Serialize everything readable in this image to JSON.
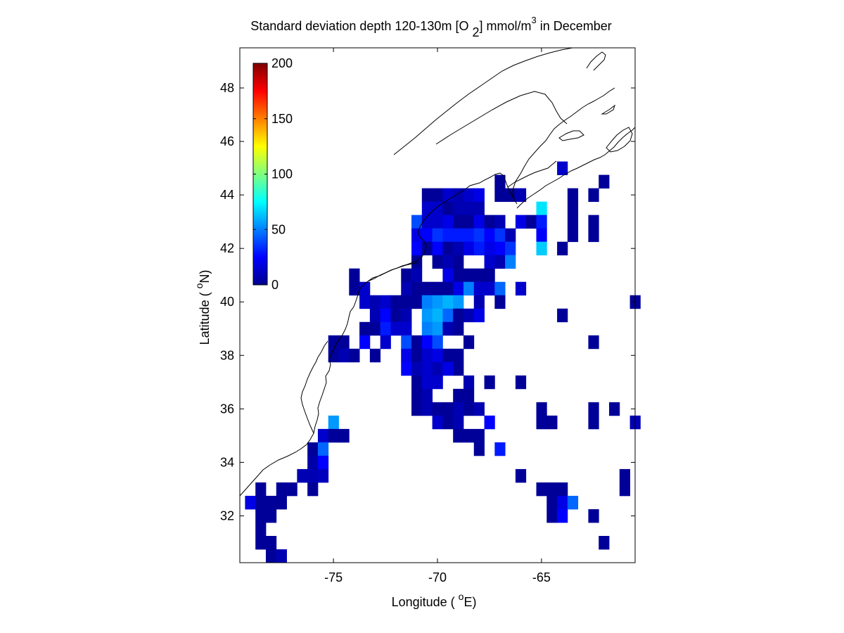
{
  "chart_data": {
    "type": "heatmap",
    "title": "Standard deviation depth 120-130m [O 2] mmol/m3 in December",
    "title_parts": {
      "pre": "Standard deviation depth 120-130m [O ",
      "sub": "2",
      "mid": "] mmol/m",
      "sup": "3",
      "post": " in December"
    },
    "xlabel": "Longitude ( oE)",
    "xlabel_parts": {
      "pre": "Longitude ( ",
      "sup": "o",
      "post": "E)"
    },
    "ylabel": "Latitude ( oN)",
    "ylabel_parts": {
      "pre": "Latitude ( ",
      "sup": "o",
      "post": "N)"
    },
    "xlim": [
      -79.5,
      -60.5
    ],
    "ylim": [
      30.25,
      49.5
    ],
    "x_ticks": [
      -75,
      -70,
      -65
    ],
    "x_tick_labels": [
      "-75",
      "-70",
      "-65"
    ],
    "y_ticks": [
      32,
      34,
      36,
      38,
      40,
      42,
      44,
      46,
      48
    ],
    "y_tick_labels": [
      "32",
      "34",
      "36",
      "38",
      "40",
      "42",
      "44",
      "46",
      "48"
    ],
    "colormap": "jet",
    "clim": [
      0,
      200
    ],
    "colorbar_ticks": [
      0,
      50,
      100,
      150,
      200
    ],
    "colorbar_tick_labels": [
      "0",
      "50",
      "100",
      "150",
      "200"
    ],
    "colorbar_location": "inside top-left",
    "grid": false,
    "cell_size_deg": 0.5,
    "cells": [
      [
        -79,
        32.5,
        20
      ],
      [
        -78.5,
        32.5,
        5
      ],
      [
        -78.5,
        32,
        5
      ],
      [
        -78.5,
        31.5,
        5
      ],
      [
        -78.5,
        31,
        5
      ],
      [
        -78.5,
        33,
        5
      ],
      [
        -78,
        32.5,
        5
      ],
      [
        -78,
        32,
        5
      ],
      [
        -78,
        31,
        5
      ],
      [
        -78,
        30.5,
        5
      ],
      [
        -77.5,
        33,
        5
      ],
      [
        -77.5,
        32.5,
        5
      ],
      [
        -77.5,
        30.5,
        10
      ],
      [
        -77,
        33,
        5
      ],
      [
        -76.5,
        33.5,
        10
      ],
      [
        -76,
        34.5,
        5
      ],
      [
        -76,
        34,
        8
      ],
      [
        -76,
        33.5,
        10
      ],
      [
        -76,
        33,
        5
      ],
      [
        -75.5,
        35,
        15
      ],
      [
        -75.5,
        34.5,
        45
      ],
      [
        -75.5,
        34,
        25
      ],
      [
        -75.5,
        33.5,
        12
      ],
      [
        -75,
        35.5,
        55
      ],
      [
        -75,
        35,
        5
      ],
      [
        -74.5,
        35,
        5
      ],
      [
        -75,
        38.5,
        5
      ],
      [
        -75,
        38,
        5
      ],
      [
        -74.5,
        38.5,
        5
      ],
      [
        -74.5,
        38,
        10
      ],
      [
        -74,
        38,
        5
      ],
      [
        -74,
        41,
        5
      ],
      [
        -74,
        40.5,
        5
      ],
      [
        -73.5,
        40.5,
        15
      ],
      [
        -73.5,
        40,
        15
      ],
      [
        -73.5,
        39,
        5
      ],
      [
        -73.5,
        38.5,
        25
      ],
      [
        -73,
        40,
        10
      ],
      [
        -73,
        39.5,
        10
      ],
      [
        -73,
        39,
        5
      ],
      [
        -73,
        38,
        5
      ],
      [
        -72.5,
        40,
        15
      ],
      [
        -72.5,
        39.5,
        25
      ],
      [
        -72.5,
        39,
        30
      ],
      [
        -72.5,
        38.5,
        15
      ],
      [
        -72,
        40,
        5
      ],
      [
        -72,
        39.5,
        5
      ],
      [
        -72,
        39,
        15
      ],
      [
        -71.5,
        41,
        5
      ],
      [
        -71.5,
        40.5,
        10
      ],
      [
        -71.5,
        40,
        5
      ],
      [
        -71.5,
        39.5,
        10
      ],
      [
        -71.5,
        39,
        15
      ],
      [
        -71.5,
        38.5,
        40
      ],
      [
        -71.5,
        38,
        20
      ],
      [
        -71.5,
        37.5,
        25
      ],
      [
        -71,
        41.5,
        5
      ],
      [
        -71,
        41,
        10
      ],
      [
        -71,
        40.5,
        5
      ],
      [
        -71,
        40,
        5
      ],
      [
        -71,
        38.5,
        5
      ],
      [
        -71,
        38,
        5
      ],
      [
        -71,
        37.5,
        10
      ],
      [
        -71,
        37,
        5
      ],
      [
        -71,
        36.5,
        5
      ],
      [
        -71,
        36,
        5
      ],
      [
        -71,
        43,
        40
      ],
      [
        -71,
        42.5,
        20
      ],
      [
        -71,
        42,
        25
      ],
      [
        -70.5,
        44,
        5
      ],
      [
        -70.5,
        43.5,
        15
      ],
      [
        -70.5,
        43,
        15
      ],
      [
        -70.5,
        42.5,
        25
      ],
      [
        -70.5,
        42,
        5
      ],
      [
        -70.5,
        40.5,
        5
      ],
      [
        -70.5,
        40,
        50
      ],
      [
        -70.5,
        39.5,
        55
      ],
      [
        -70.5,
        39,
        50
      ],
      [
        -70.5,
        38.5,
        25
      ],
      [
        -70.5,
        38,
        15
      ],
      [
        -70.5,
        37.5,
        15
      ],
      [
        -70.5,
        37,
        15
      ],
      [
        -70.5,
        36.5,
        10
      ],
      [
        -70.5,
        36,
        10
      ],
      [
        -70,
        44,
        5
      ],
      [
        -70,
        43.5,
        15
      ],
      [
        -70,
        43,
        15
      ],
      [
        -70,
        42.5,
        35
      ],
      [
        -70,
        42,
        25
      ],
      [
        -70,
        41.5,
        5
      ],
      [
        -70,
        40.5,
        5
      ],
      [
        -70,
        40,
        55
      ],
      [
        -70,
        39.5,
        60
      ],
      [
        -70,
        39,
        55
      ],
      [
        -70,
        38.5,
        40
      ],
      [
        -70,
        38,
        20
      ],
      [
        -70,
        37.5,
        10
      ],
      [
        -70,
        37,
        15
      ],
      [
        -70,
        36,
        5
      ],
      [
        -70,
        35.5,
        15
      ],
      [
        -69.5,
        44,
        15
      ],
      [
        -69.5,
        43.5,
        5
      ],
      [
        -69.5,
        43,
        20
      ],
      [
        -69.5,
        42.5,
        30
      ],
      [
        -69.5,
        42,
        5
      ],
      [
        -69.5,
        41.5,
        10
      ],
      [
        -69.5,
        41,
        20
      ],
      [
        -69.5,
        40.5,
        5
      ],
      [
        -69.5,
        40,
        60
      ],
      [
        -69.5,
        39.5,
        45
      ],
      [
        -69.5,
        39,
        10
      ],
      [
        -69.5,
        38,
        5
      ],
      [
        -69.5,
        37.5,
        20
      ],
      [
        -69.5,
        36,
        5
      ],
      [
        -69.5,
        35.5,
        5
      ],
      [
        -69,
        44,
        10
      ],
      [
        -69,
        43.5,
        10
      ],
      [
        -69,
        43,
        5
      ],
      [
        -69,
        42.5,
        30
      ],
      [
        -69,
        42,
        10
      ],
      [
        -69,
        41.5,
        5
      ],
      [
        -69,
        41,
        5
      ],
      [
        -69,
        40.5,
        20
      ],
      [
        -69,
        40,
        55
      ],
      [
        -69,
        39.5,
        5
      ],
      [
        -69,
        39,
        5
      ],
      [
        -69,
        38,
        5
      ],
      [
        -69,
        37.5,
        5
      ],
      [
        -69,
        36.5,
        5
      ],
      [
        -69,
        36,
        10
      ],
      [
        -69,
        35.5,
        10
      ],
      [
        -69,
        35,
        5
      ],
      [
        -68.5,
        44,
        15
      ],
      [
        -68.5,
        43.5,
        10
      ],
      [
        -68.5,
        43,
        5
      ],
      [
        -68.5,
        42.5,
        30
      ],
      [
        -68.5,
        42,
        20
      ],
      [
        -68.5,
        41,
        5
      ],
      [
        -68.5,
        40.5,
        50
      ],
      [
        -68.5,
        39.5,
        10
      ],
      [
        -68.5,
        38.5,
        5
      ],
      [
        -68.5,
        37,
        10
      ],
      [
        -68.5,
        36.5,
        5
      ],
      [
        -68.5,
        36,
        5
      ],
      [
        -68.5,
        35,
        5
      ],
      [
        -68,
        44,
        20
      ],
      [
        -68,
        43.5,
        10
      ],
      [
        -68,
        43,
        20
      ],
      [
        -68,
        42.5,
        35
      ],
      [
        -68,
        42,
        30
      ],
      [
        -68,
        41,
        5
      ],
      [
        -68,
        40.5,
        15
      ],
      [
        -68,
        40,
        10
      ],
      [
        -68,
        39.5,
        20
      ],
      [
        -68,
        36,
        10
      ],
      [
        -68,
        35,
        5
      ],
      [
        -68,
        34.5,
        5
      ],
      [
        -67.5,
        43,
        5
      ],
      [
        -67.5,
        42.5,
        25
      ],
      [
        -67.5,
        42,
        20
      ],
      [
        -67.5,
        41.5,
        15
      ],
      [
        -67.5,
        41,
        5
      ],
      [
        -67.5,
        40.5,
        15
      ],
      [
        -67.5,
        37,
        5
      ],
      [
        -67.5,
        35.5,
        25
      ],
      [
        -67,
        44.5,
        5
      ],
      [
        -67,
        44,
        5
      ],
      [
        -67,
        43,
        10
      ],
      [
        -67,
        42.5,
        35
      ],
      [
        -67,
        42,
        25
      ],
      [
        -67,
        41.5,
        10
      ],
      [
        -67,
        40.5,
        45
      ],
      [
        -67,
        40,
        5
      ],
      [
        -67,
        34.5,
        30
      ],
      [
        -66.5,
        44,
        5
      ],
      [
        -66.5,
        42.5,
        10
      ],
      [
        -66.5,
        42,
        35
      ],
      [
        -66.5,
        41.5,
        50
      ],
      [
        -66,
        44,
        10
      ],
      [
        -66,
        43,
        20
      ],
      [
        -66,
        40.5,
        15
      ],
      [
        -66,
        37,
        5
      ],
      [
        -66,
        33.5,
        5
      ],
      [
        -65.5,
        43,
        5
      ],
      [
        -65,
        43.5,
        70
      ],
      [
        -65,
        43,
        30
      ],
      [
        -65,
        42.5,
        25
      ],
      [
        -65,
        42,
        65
      ],
      [
        -65,
        36,
        5
      ],
      [
        -65,
        35.5,
        5
      ],
      [
        -65,
        33,
        5
      ],
      [
        -64.5,
        35.5,
        5
      ],
      [
        -64.5,
        33,
        5
      ],
      [
        -64.5,
        32.5,
        5
      ],
      [
        -64.5,
        32,
        5
      ],
      [
        -64,
        45,
        15
      ],
      [
        -64,
        42,
        5
      ],
      [
        -64,
        39.5,
        5
      ],
      [
        -64,
        33,
        5
      ],
      [
        -64,
        32.5,
        20
      ],
      [
        -64,
        32,
        25
      ],
      [
        -63.5,
        44,
        5
      ],
      [
        -63.5,
        43.5,
        5
      ],
      [
        -63.5,
        43,
        5
      ],
      [
        -63.5,
        42.5,
        5
      ],
      [
        -63.5,
        32.5,
        45
      ],
      [
        -62.5,
        44,
        5
      ],
      [
        -62.5,
        43,
        5
      ],
      [
        -62.5,
        42.5,
        5
      ],
      [
        -62.5,
        38.5,
        5
      ],
      [
        -62.5,
        36,
        5
      ],
      [
        -62.5,
        35.5,
        5
      ],
      [
        -62.5,
        32,
        5
      ],
      [
        -62,
        44.5,
        5
      ],
      [
        -62,
        31,
        5
      ],
      [
        -61.5,
        36,
        5
      ],
      [
        -60.5,
        40,
        5
      ],
      [
        -60.5,
        35.5,
        10
      ],
      [
        -61,
        33.5,
        5
      ],
      [
        -61,
        33,
        5
      ]
    ]
  }
}
